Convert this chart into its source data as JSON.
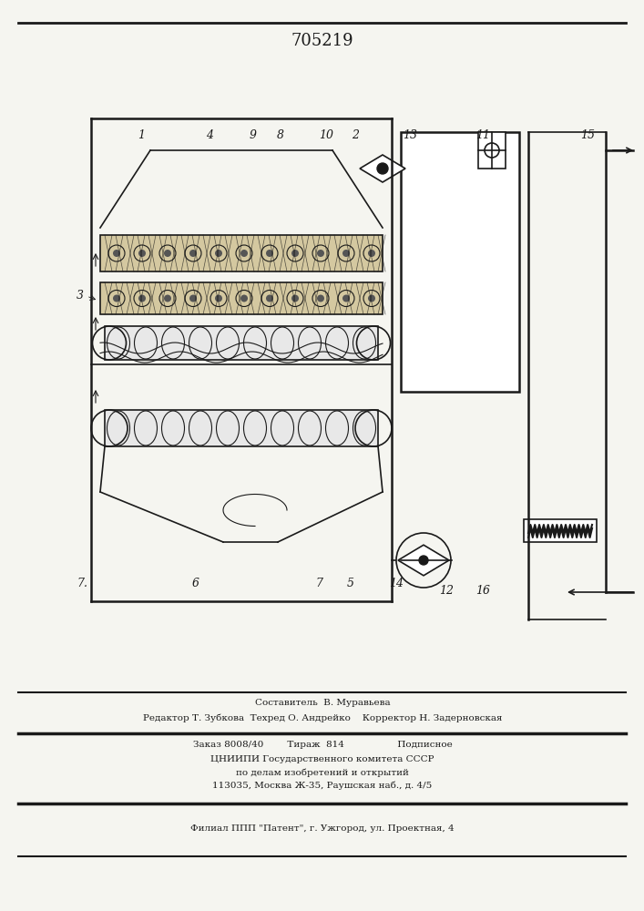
{
  "patent_number": "705219",
  "background_color": "#f5f5f0",
  "line_color": "#1a1a1a",
  "title_fontsize": 13,
  "label_fontsize": 9,
  "footer_lines": [
    "Составитель  В. Муравьева",
    "Редактор Т. Зубкова  Техред О. Андрейко    Корректор Н. Задерновская",
    "Заказ 8008/40        Тираж  814                  Подписное",
    "ЦНИИПИ Государственного комитета СССР",
    "по делам изобретений и открытий",
    "113035, Москва Ж-35, Раушская наб., д. 4/5",
    "Филиал ППП \"Патент\", г. Ужгород, ул. Проектная, 4"
  ]
}
